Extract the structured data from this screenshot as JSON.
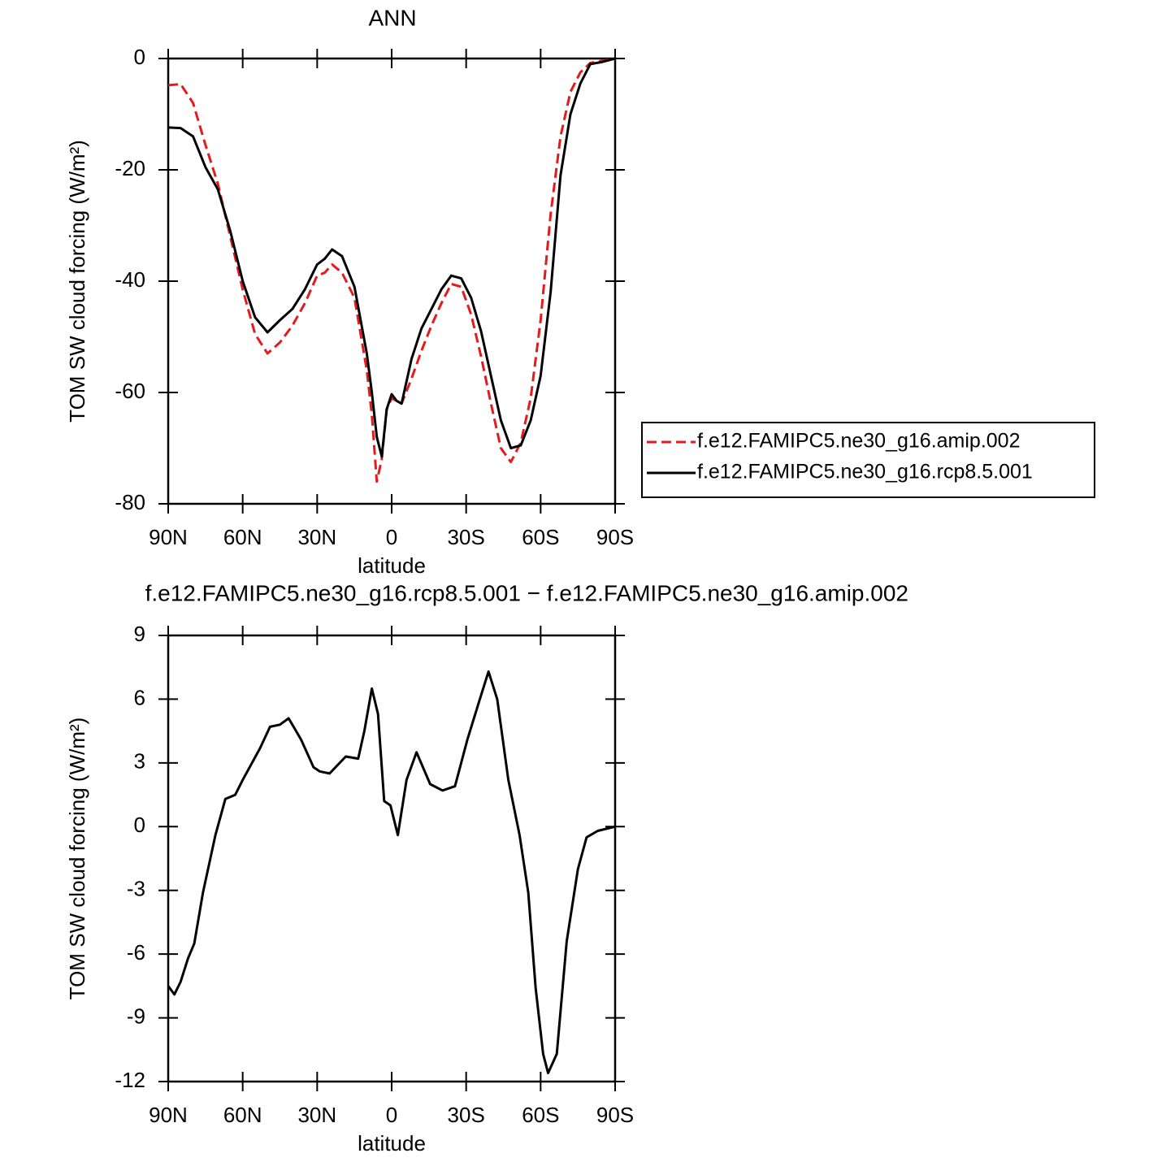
{
  "chart_data": [
    {
      "type": "line",
      "title": "ANN",
      "xlabel": "latitude",
      "ylabel": "TOM SW cloud forcing (W/m²)",
      "x": [
        90,
        85,
        80,
        75,
        70,
        65,
        60,
        55,
        50,
        45,
        40,
        35,
        30,
        27,
        24,
        20,
        15,
        10,
        8,
        6,
        4,
        2,
        0,
        -2,
        -4,
        -8,
        -12,
        -16,
        -20,
        -24,
        -28,
        -32,
        -36,
        -40,
        -44,
        -48,
        -52,
        -56,
        -60,
        -64,
        -68,
        -72,
        -76,
        -80,
        -85,
        -90
      ],
      "series": [
        {
          "name": "f.e12.FAMIPC5.ne30_g16.amip.002",
          "color": "#e41a1c",
          "linestyle": "dashed",
          "values": [
            -4.8,
            -4.6,
            -8,
            -15.5,
            -22.5,
            -32,
            -41.5,
            -49.5,
            -53,
            -51,
            -48,
            -44,
            -39,
            -38.5,
            -37,
            -38.5,
            -43,
            -56,
            -64,
            -76,
            -72,
            -63,
            -61,
            -61.5,
            -62,
            -57.5,
            -52.5,
            -48,
            -44,
            -40.5,
            -41,
            -46,
            -53.5,
            -62,
            -70,
            -72.5,
            -69,
            -61,
            -47,
            -28,
            -14,
            -6,
            -2.5,
            -0.8,
            -0.4,
            0
          ]
        },
        {
          "name": "f.e12.FAMIPC5.ne30_g16.rcp8.5.001",
          "color": "#000000",
          "linestyle": "solid",
          "values": [
            -12.4,
            -12.5,
            -14,
            -19.5,
            -23.5,
            -31,
            -40,
            -46.5,
            -49.2,
            -47,
            -45,
            -41.5,
            -37,
            -36,
            -34.3,
            -35.5,
            -41,
            -53,
            -60,
            -68,
            -71.5,
            -63,
            -60.3,
            -61.5,
            -62,
            -54,
            -48.5,
            -45,
            -41.5,
            -39,
            -39.5,
            -43,
            -49,
            -57,
            -65,
            -70,
            -69.5,
            -65,
            -57,
            -42,
            -21,
            -10,
            -4.5,
            -1,
            -0.6,
            0
          ]
        }
      ],
      "xlim": [
        90,
        -90
      ],
      "xticks": [
        {
          "value": 90,
          "label": "90N"
        },
        {
          "value": 60,
          "label": "60N"
        },
        {
          "value": 30,
          "label": "30N"
        },
        0,
        {
          "value": -30,
          "label": "30S"
        },
        {
          "value": -60,
          "label": "60S"
        },
        {
          "value": -90,
          "label": "90S"
        }
      ],
      "ylim": [
        -80,
        0
      ],
      "yticks": [
        0,
        -20,
        -40,
        -60,
        -80
      ],
      "legend": "right"
    },
    {
      "type": "line",
      "title": "f.e12.FAMIPC5.ne30_g16.rcp8.5.001 − f.e12.FAMIPC5.ne30_g16.amip.002",
      "xlabel": "latitude",
      "ylabel": "TOM SW cloud forcing (W/m²)",
      "x": [
        90,
        87.5,
        85,
        82,
        79.5,
        76,
        71,
        67,
        63,
        60,
        53,
        49,
        45,
        41.5,
        36.5,
        31.5,
        29,
        25,
        18.5,
        13.5,
        11,
        8,
        5.5,
        3,
        0.5,
        -2.5,
        -6,
        -10,
        -15.5,
        -20.5,
        -25.5,
        -30.5,
        -35.5,
        -39,
        -42.5,
        -47,
        -51.5,
        -55,
        -58,
        -61,
        -63,
        -66.5,
        -70.5,
        -75,
        -78.5,
        -83,
        -90
      ],
      "series": [
        {
          "color": "#000000",
          "linestyle": "solid",
          "values": [
            -7.5,
            -7.9,
            -7.3,
            -6.2,
            -5.5,
            -3.1,
            -0.4,
            1.3,
            1.5,
            2.2,
            3.7,
            4.7,
            4.8,
            5.1,
            4.1,
            2.8,
            2.6,
            2.5,
            3.3,
            3.2,
            4.5,
            6.5,
            5.3,
            1.2,
            1,
            -0.4,
            2.2,
            3.5,
            2,
            1.7,
            1.9,
            4.1,
            6,
            7.3,
            6,
            2.2,
            -0.4,
            -3.1,
            -7.6,
            -10.7,
            -11.6,
            -10.7,
            -5.4,
            -2,
            -0.5,
            -0.2,
            0
          ]
        }
      ],
      "xlim": [
        90,
        -90
      ],
      "xticks": [
        {
          "value": 90,
          "label": "90N"
        },
        {
          "value": 60,
          "label": "60N"
        },
        {
          "value": 30,
          "label": "30N"
        },
        0,
        {
          "value": -30,
          "label": "30S"
        },
        {
          "value": -60,
          "label": "60S"
        },
        {
          "value": -90,
          "label": "90S"
        }
      ],
      "ylim": [
        -12,
        9
      ],
      "yticks": [
        9,
        6,
        3,
        0,
        -3,
        -6,
        -9,
        -12
      ]
    }
  ]
}
